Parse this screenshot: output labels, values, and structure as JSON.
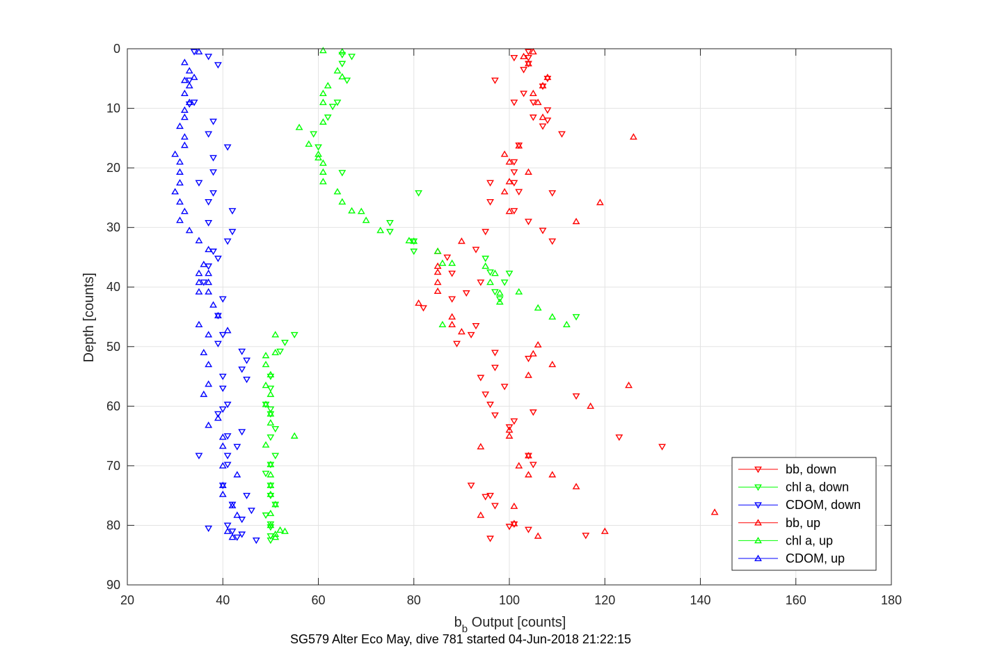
{
  "chart_data": {
    "type": "scatter",
    "title": "SG579 Alter Eco May, dive 781 started 04-Jun-2018 21:22:15",
    "xlabel_main": "b",
    "xlabel_sub": "b",
    "xlabel_rest": " Output [counts]",
    "ylabel": "Depth [counts]",
    "xlim": [
      20,
      180
    ],
    "ylim": [
      0,
      90
    ],
    "y_reversed": true,
    "grid": true,
    "legend_position": "bottom-right",
    "xticks": [
      "20",
      "40",
      "60",
      "80",
      "100",
      "120",
      "140",
      "160",
      "180"
    ],
    "yticks": [
      "0",
      "10",
      "20",
      "30",
      "40",
      "50",
      "60",
      "70",
      "80",
      "90"
    ],
    "series": [
      {
        "name": "bb, down",
        "color": "#ff0000",
        "marker": "triangle-down",
        "points": [
          [
            104,
            0.5
          ],
          [
            104,
            1.5
          ],
          [
            101,
            1.5
          ],
          [
            104,
            2.5
          ],
          [
            103,
            3.5
          ],
          [
            97,
            5.3
          ],
          [
            108,
            5
          ],
          [
            107,
            6.3
          ],
          [
            103,
            7.5
          ],
          [
            101,
            9
          ],
          [
            105,
            9
          ],
          [
            108,
            10.3
          ],
          [
            105,
            11.5
          ],
          [
            108,
            12
          ],
          [
            107,
            13
          ],
          [
            111,
            14.3
          ],
          [
            102,
            16.2
          ],
          [
            101,
            19
          ],
          [
            101,
            20.7
          ],
          [
            96,
            22.5
          ],
          [
            101,
            22.5
          ],
          [
            102,
            24
          ],
          [
            109,
            24.2
          ],
          [
            96,
            25.7
          ],
          [
            101,
            27.2
          ],
          [
            104,
            29
          ],
          [
            95,
            30.7
          ],
          [
            107,
            30.5
          ],
          [
            109,
            32.3
          ],
          [
            93,
            33.7
          ],
          [
            87,
            35
          ],
          [
            88,
            37.7
          ],
          [
            94,
            39.2
          ],
          [
            88,
            42
          ],
          [
            91,
            41
          ],
          [
            82,
            43.5
          ],
          [
            93,
            46.5
          ],
          [
            92,
            48
          ],
          [
            89,
            49.5
          ],
          [
            97,
            51
          ],
          [
            104,
            52
          ],
          [
            97,
            53.5
          ],
          [
            94,
            55.2
          ],
          [
            99,
            56.7
          ],
          [
            95,
            58
          ],
          [
            96,
            59.7
          ],
          [
            97,
            61.5
          ],
          [
            105,
            61
          ],
          [
            101,
            62.5
          ],
          [
            100,
            63.5
          ],
          [
            114,
            58.3
          ],
          [
            123,
            65.2
          ],
          [
            132,
            66.8
          ],
          [
            104,
            68.3
          ],
          [
            105,
            69.8
          ],
          [
            92,
            73.3
          ],
          [
            96,
            75
          ],
          [
            95,
            75.2
          ],
          [
            97,
            76.7
          ],
          [
            101,
            79.8
          ],
          [
            100,
            80.2
          ],
          [
            104,
            80.7
          ],
          [
            116,
            81.7
          ],
          [
            96,
            82.2
          ]
        ]
      },
      {
        "name": "chl a, down",
        "color": "#00ff00",
        "marker": "triangle-down",
        "points": [
          [
            65,
            1
          ],
          [
            67,
            1.3
          ],
          [
            65,
            2.5
          ],
          [
            66,
            5.3
          ],
          [
            64,
            9
          ],
          [
            63,
            9.7
          ],
          [
            62,
            11.5
          ],
          [
            59,
            14.3
          ],
          [
            60,
            16.5
          ],
          [
            65,
            20.8
          ],
          [
            81,
            24.2
          ],
          [
            75,
            29.2
          ],
          [
            75,
            30.7
          ],
          [
            80,
            32.3
          ],
          [
            80,
            34
          ],
          [
            95,
            35.2
          ],
          [
            96,
            37.5
          ],
          [
            100,
            37.7
          ],
          [
            99,
            39.2
          ],
          [
            97,
            40.8
          ],
          [
            98,
            42
          ],
          [
            114,
            45
          ],
          [
            55,
            48
          ],
          [
            53,
            49.3
          ],
          [
            52,
            50.8
          ],
          [
            50,
            55
          ],
          [
            50,
            57
          ],
          [
            49,
            59.7
          ],
          [
            50,
            60.5
          ],
          [
            50,
            61.3
          ],
          [
            51,
            63.8
          ],
          [
            50,
            65.2
          ],
          [
            51,
            68.3
          ],
          [
            50,
            69.8
          ],
          [
            49,
            71.3
          ],
          [
            50,
            73.3
          ],
          [
            50,
            75
          ],
          [
            51,
            76.5
          ],
          [
            49,
            78.3
          ],
          [
            50,
            79.8
          ],
          [
            50,
            80.3
          ],
          [
            50,
            81.8
          ],
          [
            50,
            82.5
          ]
        ]
      },
      {
        "name": "CDOM, down",
        "color": "#0000ff",
        "marker": "triangle-down",
        "points": [
          [
            34,
            0.5
          ],
          [
            37,
            1.3
          ],
          [
            39,
            2.7
          ],
          [
            33,
            5.3
          ],
          [
            34,
            9
          ],
          [
            33,
            9.3
          ],
          [
            38,
            12.2
          ],
          [
            37,
            14.3
          ],
          [
            41,
            16.5
          ],
          [
            38,
            18.3
          ],
          [
            38,
            20.7
          ],
          [
            35,
            22.5
          ],
          [
            38,
            24.2
          ],
          [
            37,
            25.7
          ],
          [
            42,
            27.2
          ],
          [
            37,
            29.2
          ],
          [
            42,
            30.7
          ],
          [
            41,
            32.3
          ],
          [
            38,
            34
          ],
          [
            39,
            35.2
          ],
          [
            37,
            36.5
          ],
          [
            36,
            39.2
          ],
          [
            40,
            42
          ],
          [
            39,
            44.8
          ],
          [
            40,
            48
          ],
          [
            39,
            49.5
          ],
          [
            44,
            50.8
          ],
          [
            45,
            52.3
          ],
          [
            44,
            53.8
          ],
          [
            45,
            55.5
          ],
          [
            40,
            55
          ],
          [
            40,
            57
          ],
          [
            41,
            59.7
          ],
          [
            40,
            60.5
          ],
          [
            39,
            61.3
          ],
          [
            44,
            64.3
          ],
          [
            41,
            65
          ],
          [
            43,
            66.8
          ],
          [
            41,
            68.3
          ],
          [
            35,
            68.3
          ],
          [
            41,
            69.8
          ],
          [
            40,
            73.3
          ],
          [
            45,
            75
          ],
          [
            42,
            76.5
          ],
          [
            46,
            77.5
          ],
          [
            44,
            79
          ],
          [
            41,
            80
          ],
          [
            37,
            80.5
          ],
          [
            42,
            81
          ],
          [
            44,
            81.5
          ],
          [
            43,
            82
          ],
          [
            47,
            82.5
          ]
        ]
      },
      {
        "name": "bb, up",
        "color": "#ff0000",
        "marker": "triangle-up",
        "points": [
          [
            105,
            0.5
          ],
          [
            103,
            1.3
          ],
          [
            104,
            2.5
          ],
          [
            108,
            4.8
          ],
          [
            107,
            6.2
          ],
          [
            105,
            7.5
          ],
          [
            106,
            9
          ],
          [
            107,
            11.5
          ],
          [
            126,
            14.8
          ],
          [
            102,
            16.3
          ],
          [
            99,
            17.7
          ],
          [
            100,
            19
          ],
          [
            104,
            20.7
          ],
          [
            100,
            22.3
          ],
          [
            99,
            24
          ],
          [
            119,
            25.8
          ],
          [
            100,
            27.3
          ],
          [
            114,
            29
          ],
          [
            90,
            32.3
          ],
          [
            85,
            34
          ],
          [
            85,
            36.5
          ],
          [
            85,
            37.5
          ],
          [
            85,
            39.2
          ],
          [
            85,
            40.7
          ],
          [
            81,
            42.7
          ],
          [
            88,
            45
          ],
          [
            88,
            46.3
          ],
          [
            90,
            47.5
          ],
          [
            106,
            49.7
          ],
          [
            105,
            51.2
          ],
          [
            109,
            53
          ],
          [
            104,
            54.8
          ],
          [
            125,
            56.5
          ],
          [
            117,
            60
          ],
          [
            100,
            64
          ],
          [
            100,
            65
          ],
          [
            94,
            66.8
          ],
          [
            104,
            68.3
          ],
          [
            102,
            70
          ],
          [
            104,
            71.5
          ],
          [
            109,
            71.5
          ],
          [
            114,
            73.5
          ],
          [
            143,
            77.8
          ],
          [
            101,
            76.8
          ],
          [
            94,
            78.3
          ],
          [
            101,
            79.7
          ],
          [
            120,
            81
          ],
          [
            106,
            81.8
          ]
        ]
      },
      {
        "name": "chl a, up",
        "color": "#00ff00",
        "marker": "triangle-up",
        "points": [
          [
            61,
            0.3
          ],
          [
            65,
            0.5
          ],
          [
            64,
            3.7
          ],
          [
            65,
            4.7
          ],
          [
            62,
            6.2
          ],
          [
            61,
            7.5
          ],
          [
            61,
            9
          ],
          [
            61,
            12.3
          ],
          [
            56,
            13.2
          ],
          [
            58,
            16
          ],
          [
            60,
            17.7
          ],
          [
            60,
            18.3
          ],
          [
            61,
            19.2
          ],
          [
            61,
            20.7
          ],
          [
            61,
            22.3
          ],
          [
            64,
            24
          ],
          [
            65,
            25.7
          ],
          [
            67,
            27.2
          ],
          [
            69,
            27.3
          ],
          [
            70,
            28.8
          ],
          [
            73,
            30.5
          ],
          [
            79,
            32.2
          ],
          [
            80,
            32.3
          ],
          [
            85,
            34
          ],
          [
            86,
            36
          ],
          [
            88,
            36
          ],
          [
            95,
            36.5
          ],
          [
            97,
            37.7
          ],
          [
            96,
            39.2
          ],
          [
            98,
            41
          ],
          [
            102,
            40.8
          ],
          [
            98,
            42.5
          ],
          [
            106,
            43.5
          ],
          [
            109,
            45
          ],
          [
            112,
            46.3
          ],
          [
            86,
            46.3
          ],
          [
            51,
            48
          ],
          [
            51,
            51
          ],
          [
            49,
            51.5
          ],
          [
            49,
            53
          ],
          [
            50,
            54.7
          ],
          [
            49,
            56.5
          ],
          [
            50,
            58
          ],
          [
            49,
            59.7
          ],
          [
            50,
            61.3
          ],
          [
            50,
            62.8
          ],
          [
            55,
            65
          ],
          [
            49,
            66.5
          ],
          [
            50,
            69.8
          ],
          [
            50,
            71.5
          ],
          [
            50,
            73.3
          ],
          [
            50,
            74.8
          ],
          [
            51,
            76.5
          ],
          [
            50,
            78
          ],
          [
            50,
            80
          ],
          [
            52,
            80.8
          ],
          [
            53,
            81
          ],
          [
            51,
            81.5
          ],
          [
            51,
            82
          ]
        ]
      },
      {
        "name": "CDOM, up",
        "color": "#0000ff",
        "marker": "triangle-up",
        "points": [
          [
            35,
            0.5
          ],
          [
            32,
            2.3
          ],
          [
            33,
            3.7
          ],
          [
            34,
            4.8
          ],
          [
            32,
            5.3
          ],
          [
            33,
            6.2
          ],
          [
            32,
            7.5
          ],
          [
            33,
            9
          ],
          [
            32,
            10.3
          ],
          [
            32,
            11.5
          ],
          [
            31,
            13
          ],
          [
            32,
            14.8
          ],
          [
            32,
            16.2
          ],
          [
            30,
            17.7
          ],
          [
            31,
            19
          ],
          [
            31,
            20.7
          ],
          [
            31,
            22.5
          ],
          [
            30,
            24
          ],
          [
            31,
            25.7
          ],
          [
            32,
            27.3
          ],
          [
            31,
            28.8
          ],
          [
            33,
            30.5
          ],
          [
            35,
            32.2
          ],
          [
            37,
            33.7
          ],
          [
            36,
            36.2
          ],
          [
            35,
            37.7
          ],
          [
            37,
            37.7
          ],
          [
            35,
            39.2
          ],
          [
            37,
            39.2
          ],
          [
            37,
            40.8
          ],
          [
            35,
            40.8
          ],
          [
            38,
            43
          ],
          [
            39,
            44.8
          ],
          [
            35,
            46.3
          ],
          [
            37,
            48
          ],
          [
            41,
            47.3
          ],
          [
            36,
            51
          ],
          [
            37,
            53
          ],
          [
            37,
            56.3
          ],
          [
            36,
            58
          ],
          [
            39,
            62
          ],
          [
            37,
            63.2
          ],
          [
            40,
            65.2
          ],
          [
            40,
            66.7
          ],
          [
            40,
            70
          ],
          [
            43,
            71.5
          ],
          [
            40,
            73.3
          ],
          [
            40,
            74.8
          ],
          [
            42,
            76.7
          ],
          [
            43,
            78.3
          ],
          [
            41,
            81
          ],
          [
            42,
            82
          ]
        ]
      }
    ]
  }
}
